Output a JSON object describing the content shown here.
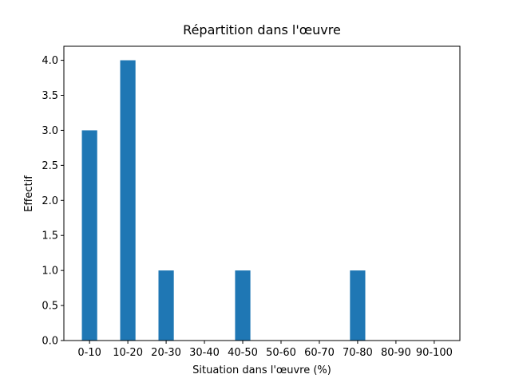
{
  "chart_data": {
    "type": "bar",
    "title": "Répartition dans l'œuvre",
    "x_label": "Situation dans l'œuvre (%)",
    "y_label": "Effectif",
    "categories": [
      "0-10",
      "10-20",
      "20-30",
      "30-40",
      "40-50",
      "50-60",
      "60-70",
      "70-80",
      "80-90",
      "90-100"
    ],
    "values": [
      3,
      4,
      1,
      0,
      1,
      0,
      0,
      1,
      0,
      0
    ],
    "color": "#1f77b4",
    "ylim": [
      0,
      4.2
    ],
    "yticks": [
      {
        "value": 0,
        "label": "0.0"
      },
      0.5,
      {
        "value": 1,
        "label": "1.0"
      },
      1.5,
      {
        "value": 2,
        "label": "2.0"
      },
      2.5,
      {
        "value": 3,
        "label": "3.0"
      },
      3.5,
      {
        "value": 4,
        "label": "4.0"
      }
    ],
    "grid": false
  }
}
